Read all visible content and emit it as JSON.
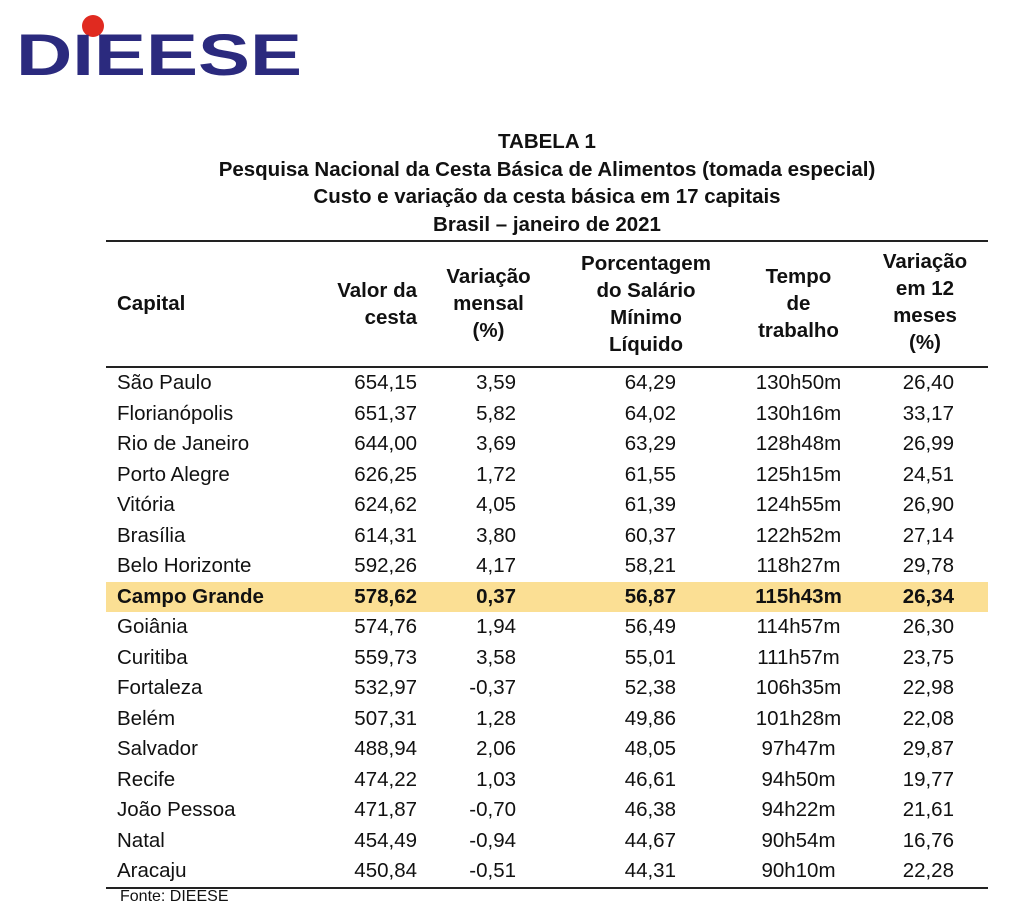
{
  "logo": {
    "text": "DIEESE",
    "colors": {
      "letters": "#2b2a7e",
      "dot": "#e02a20"
    }
  },
  "titles": [
    "TABELA 1",
    "Pesquisa Nacional da Cesta Básica de Alimentos (tomada especial)",
    "Custo e variação da cesta básica em 17 capitais",
    "Brasil – janeiro de 2021"
  ],
  "table": {
    "headers": [
      [
        "Capital"
      ],
      [
        "Valor da",
        "cesta"
      ],
      [
        "Variação",
        "mensal",
        "(%)"
      ],
      [
        "Porcentagem",
        "do Salário",
        "Mínimo",
        "Líquido"
      ],
      [
        "Tempo",
        "de",
        "trabalho"
      ],
      [
        "Variação",
        "em 12",
        "meses",
        "(%)"
      ]
    ],
    "highlight_color": "#fbdf94",
    "rows": [
      [
        "São Paulo",
        "654,15",
        "3,59",
        "64,29",
        "130h50m",
        "26,40"
      ],
      [
        "Florianópolis",
        "651,37",
        "5,82",
        "64,02",
        "130h16m",
        "33,17"
      ],
      [
        "Rio de Janeiro",
        "644,00",
        "3,69",
        "63,29",
        "128h48m",
        "26,99"
      ],
      [
        "Porto Alegre",
        "626,25",
        "1,72",
        "61,55",
        "125h15m",
        "24,51"
      ],
      [
        "Vitória",
        "624,62",
        "4,05",
        "61,39",
        "124h55m",
        "26,90"
      ],
      [
        "Brasília",
        "614,31",
        "3,80",
        "60,37",
        "122h52m",
        "27,14"
      ],
      [
        "Belo Horizonte",
        "592,26",
        "4,17",
        "58,21",
        "118h27m",
        "29,78"
      ],
      [
        "Campo Grande",
        "578,62",
        "0,37",
        "56,87",
        "115h43m",
        "26,34"
      ],
      [
        "Goiânia",
        "574,76",
        "1,94",
        "56,49",
        "114h57m",
        "26,30"
      ],
      [
        "Curitiba",
        "559,73",
        "3,58",
        "55,01",
        "111h57m",
        "23,75"
      ],
      [
        "Fortaleza",
        "532,97",
        "-0,37",
        "52,38",
        "106h35m",
        "22,98"
      ],
      [
        "Belém",
        "507,31",
        "1,28",
        "49,86",
        "101h28m",
        "22,08"
      ],
      [
        "Salvador",
        "488,94",
        "2,06",
        "48,05",
        "97h47m",
        "29,87"
      ],
      [
        "Recife",
        "474,22",
        "1,03",
        "46,61",
        "94h50m",
        "19,77"
      ],
      [
        "João Pessoa",
        "471,87",
        "-0,70",
        "46,38",
        "94h22m",
        "21,61"
      ],
      [
        "Natal",
        "454,49",
        "-0,94",
        "44,67",
        "90h54m",
        "16,76"
      ],
      [
        "Aracaju",
        "450,84",
        "-0,51",
        "44,31",
        "90h10m",
        "22,28"
      ]
    ],
    "highlighted_row": "Campo Grande"
  },
  "footer": {
    "source": "Fonte: DIEESE"
  }
}
